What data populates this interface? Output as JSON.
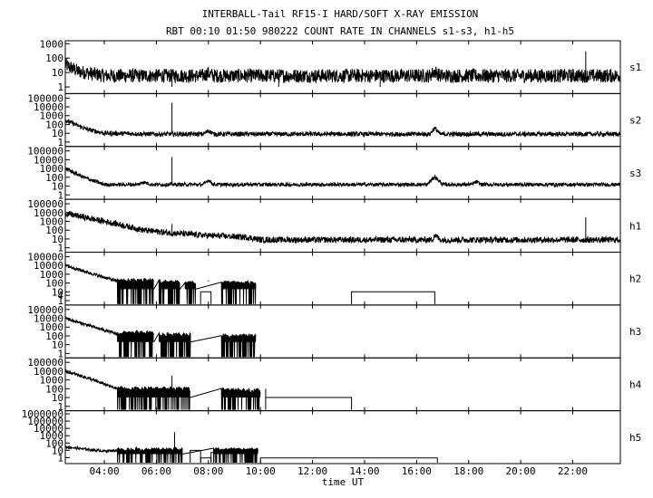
{
  "chart_data": {
    "type": "line",
    "title": "INTERBALL-Tail RF15-I HARD/SOFT X-RAY EMISSION",
    "subtitle": "RBT 00:10 01:50 980222  COUNT RATE IN CHANNELS s1-s3, h1-h5",
    "xlabel": "time UT",
    "x_unit": "hours UT",
    "xlim": [
      2.5,
      23.83
    ],
    "x_ticks": [
      4,
      6,
      8,
      10,
      12,
      14,
      16,
      18,
      20,
      22
    ],
    "x_tick_labels": [
      "04:00",
      "06:00",
      "08:00",
      "10:00",
      "12:00",
      "14:00",
      "16:00",
      "18:00",
      "20:00",
      "22:00"
    ],
    "y_scale": "log",
    "grid": false,
    "panels": [
      {
        "name": "s1",
        "ylim": [
          0.4,
          1200
        ],
        "tick_values": [
          1,
          10,
          100,
          1000
        ],
        "tick_labels": [
          "1",
          "10",
          "100",
          "1000"
        ],
        "series": [
          [
            2.5,
            35
          ],
          [
            3.0,
            12
          ],
          [
            4.0,
            6
          ],
          [
            6.0,
            6
          ],
          [
            7.8,
            6
          ],
          [
            8.0,
            9
          ],
          [
            8.2,
            6
          ],
          [
            12.0,
            6
          ],
          [
            16.5,
            6
          ],
          [
            16.7,
            12
          ],
          [
            16.9,
            6
          ],
          [
            23.8,
            6
          ]
        ],
        "noise": 3,
        "spikes": [
          [
            6.6,
            1
          ],
          [
            10.7,
            1
          ],
          [
            14.6,
            1
          ],
          [
            22.5,
            300
          ]
        ]
      },
      {
        "name": "s2",
        "ylim": [
          0.4,
          200000
        ],
        "tick_values": [
          1,
          10,
          100,
          1000,
          10000,
          100000
        ],
        "tick_labels": [
          "1",
          "10",
          "100",
          "1000",
          "10000",
          "100000"
        ],
        "series": [
          [
            2.5,
            300
          ],
          [
            3.3,
            30
          ],
          [
            4.0,
            10
          ],
          [
            6.0,
            8
          ],
          [
            7.8,
            8
          ],
          [
            8.0,
            20
          ],
          [
            8.2,
            8
          ],
          [
            16.5,
            8
          ],
          [
            16.7,
            40
          ],
          [
            16.9,
            8
          ],
          [
            23.8,
            8
          ]
        ],
        "noise": 1.8,
        "spikes": [
          [
            6.6,
            30000
          ]
        ]
      },
      {
        "name": "s3",
        "ylim": [
          0.4,
          200000
        ],
        "tick_values": [
          1,
          10,
          100,
          1000,
          10000,
          100000
        ],
        "tick_labels": [
          "1",
          "10",
          "100",
          "1000",
          "10000",
          "100000"
        ],
        "series": [
          [
            2.5,
            1000
          ],
          [
            3.2,
            100
          ],
          [
            4.0,
            15
          ],
          [
            5.3,
            15
          ],
          [
            5.5,
            30
          ],
          [
            5.8,
            15
          ],
          [
            7.8,
            15
          ],
          [
            8.0,
            50
          ],
          [
            8.2,
            15
          ],
          [
            16.4,
            15
          ],
          [
            16.7,
            120
          ],
          [
            17.0,
            15
          ],
          [
            18.1,
            15
          ],
          [
            18.3,
            30
          ],
          [
            18.5,
            15
          ],
          [
            23.8,
            15
          ]
        ],
        "noise": 1.6,
        "spikes": [
          [
            6.6,
            20000
          ]
        ]
      },
      {
        "name": "h1",
        "ylim": [
          0.4,
          200000
        ],
        "tick_values": [
          1,
          10,
          100,
          1000,
          10000,
          100000
        ],
        "tick_labels": [
          "1",
          "10",
          "100",
          "1000",
          "10000",
          "100000"
        ],
        "series": [
          [
            2.5,
            8000
          ],
          [
            3.5,
            2000
          ],
          [
            4.5,
            500
          ],
          [
            5.5,
            100
          ],
          [
            6.5,
            50
          ],
          [
            7.5,
            30
          ],
          [
            9.5,
            15
          ],
          [
            10.0,
            8
          ],
          [
            16.6,
            8
          ],
          [
            16.7,
            30
          ],
          [
            16.9,
            8
          ],
          [
            23.8,
            8
          ]
        ],
        "noise": 2.2,
        "spikes": [
          [
            6.6,
            500
          ],
          [
            22.5,
            3000
          ]
        ]
      },
      {
        "name": "h2",
        "ylim": [
          0.4,
          200000
        ],
        "tick_values": [
          1,
          4,
          10,
          100,
          1000,
          10000,
          100000
        ],
        "tick_labels": [
          "1",
          "4",
          "10",
          "100",
          "1000",
          "10000",
          "100000"
        ],
        "series": [
          [
            2.5,
            10000
          ],
          [
            3.4,
            1500
          ],
          [
            4.2,
            300
          ],
          [
            4.5,
            150
          ]
        ],
        "bursts": [
          [
            4.5,
            5.9,
            300,
            20
          ],
          [
            6.1,
            6.9,
            200,
            20
          ],
          [
            7.1,
            7.5,
            150,
            20
          ],
          [
            8.5,
            9.8,
            150,
            20
          ]
        ],
        "steps": [
          [
            7.7,
            8.1,
            10
          ],
          [
            13.5,
            16.7,
            10
          ]
        ],
        "spikes": [
          [
            8.0,
            200
          ],
          [
            16.7,
            150
          ],
          [
            16.8,
            150
          ]
        ]
      },
      {
        "name": "h3",
        "ylim": [
          0.4,
          200000
        ],
        "tick_values": [
          1,
          10,
          100,
          1000,
          10000,
          100000
        ],
        "tick_labels": [
          "1",
          "10",
          "100",
          "1000",
          "10000",
          "100000"
        ],
        "series": [
          [
            2.5,
            10000
          ],
          [
            3.4,
            1500
          ],
          [
            4.2,
            300
          ],
          [
            4.5,
            150
          ]
        ],
        "bursts": [
          [
            4.5,
            5.9,
            300,
            20
          ],
          [
            6.1,
            7.3,
            200,
            20
          ],
          [
            8.5,
            9.8,
            150,
            20
          ]
        ],
        "steps": [],
        "spikes": []
      },
      {
        "name": "h4",
        "ylim": [
          0.4,
          200000
        ],
        "tick_values": [
          1,
          10,
          100,
          1000,
          10000,
          100000
        ],
        "tick_labels": [
          "1",
          "10",
          "100",
          "1000",
          "10000",
          "100000"
        ],
        "series": [
          [
            2.5,
            10000
          ],
          [
            3.4,
            1500
          ],
          [
            4.2,
            200
          ],
          [
            4.5,
            100
          ]
        ],
        "bursts": [
          [
            4.5,
            7.3,
            150,
            10
          ],
          [
            8.5,
            10.0,
            100,
            10
          ]
        ],
        "steps": [
          [
            10.2,
            13.5,
            10
          ]
        ],
        "spikes": [
          [
            6.6,
            3000
          ],
          [
            10.2,
            10
          ]
        ]
      },
      {
        "name": "h5",
        "ylim": [
          0.2,
          1500000
        ],
        "tick_values": [
          1,
          10,
          100,
          1000,
          10000,
          100000,
          1000000
        ],
        "tick_labels": [
          "1",
          "10",
          "100",
          "1000",
          "10000",
          "100000",
          "1000000"
        ],
        "series": [
          [
            2.5,
            30
          ],
          [
            3.2,
            15
          ],
          [
            4.0,
            8
          ],
          [
            4.5,
            10
          ]
        ],
        "bursts": [
          [
            4.5,
            6.8,
            20,
            3
          ],
          [
            6.8,
            7.0,
            20,
            3
          ],
          [
            8.2,
            9.9,
            20,
            3
          ]
        ],
        "steps": [
          [
            7.3,
            7.7,
            10
          ],
          [
            7.7,
            8.1,
            0.9
          ],
          [
            8.1,
            8.2,
            5
          ],
          [
            10.0,
            16.8,
            0.9
          ]
        ],
        "spikes": [
          [
            6.7,
            3000
          ]
        ]
      }
    ]
  }
}
